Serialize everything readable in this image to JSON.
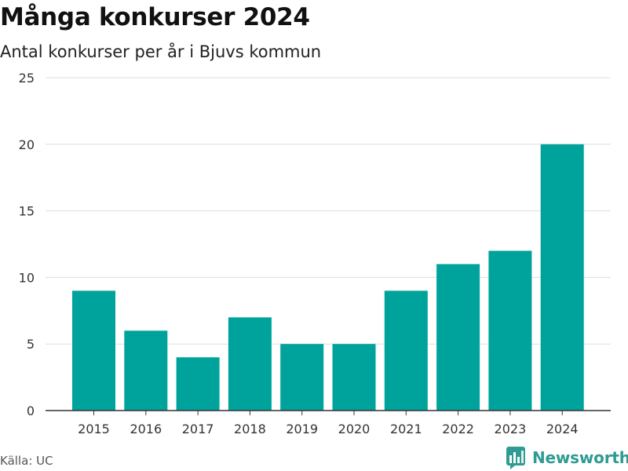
{
  "header": {
    "title": "Många konkurser 2024",
    "subtitle": "Antal konkurser per år i Bjuvs kommun"
  },
  "footer": {
    "source": "Källa: UC",
    "brand": "Newsworthy",
    "brand_icon": "bar-chart-icon",
    "brand_color": "#2f9b92"
  },
  "chart_data": {
    "type": "bar",
    "title": "Många konkurser 2024",
    "subtitle": "Antal konkurser per år i Bjuvs kommun",
    "xlabel": "",
    "ylabel": "",
    "categories": [
      "2015",
      "2016",
      "2017",
      "2018",
      "2019",
      "2020",
      "2021",
      "2022",
      "2023",
      "2024"
    ],
    "values": [
      9,
      6,
      4,
      7,
      5,
      5,
      9,
      11,
      12,
      20
    ],
    "ylim": [
      0,
      25
    ],
    "yticks": [
      0,
      5,
      10,
      15,
      20,
      25
    ],
    "grid": true,
    "legend": "none",
    "bar_color": "#00a39b"
  }
}
